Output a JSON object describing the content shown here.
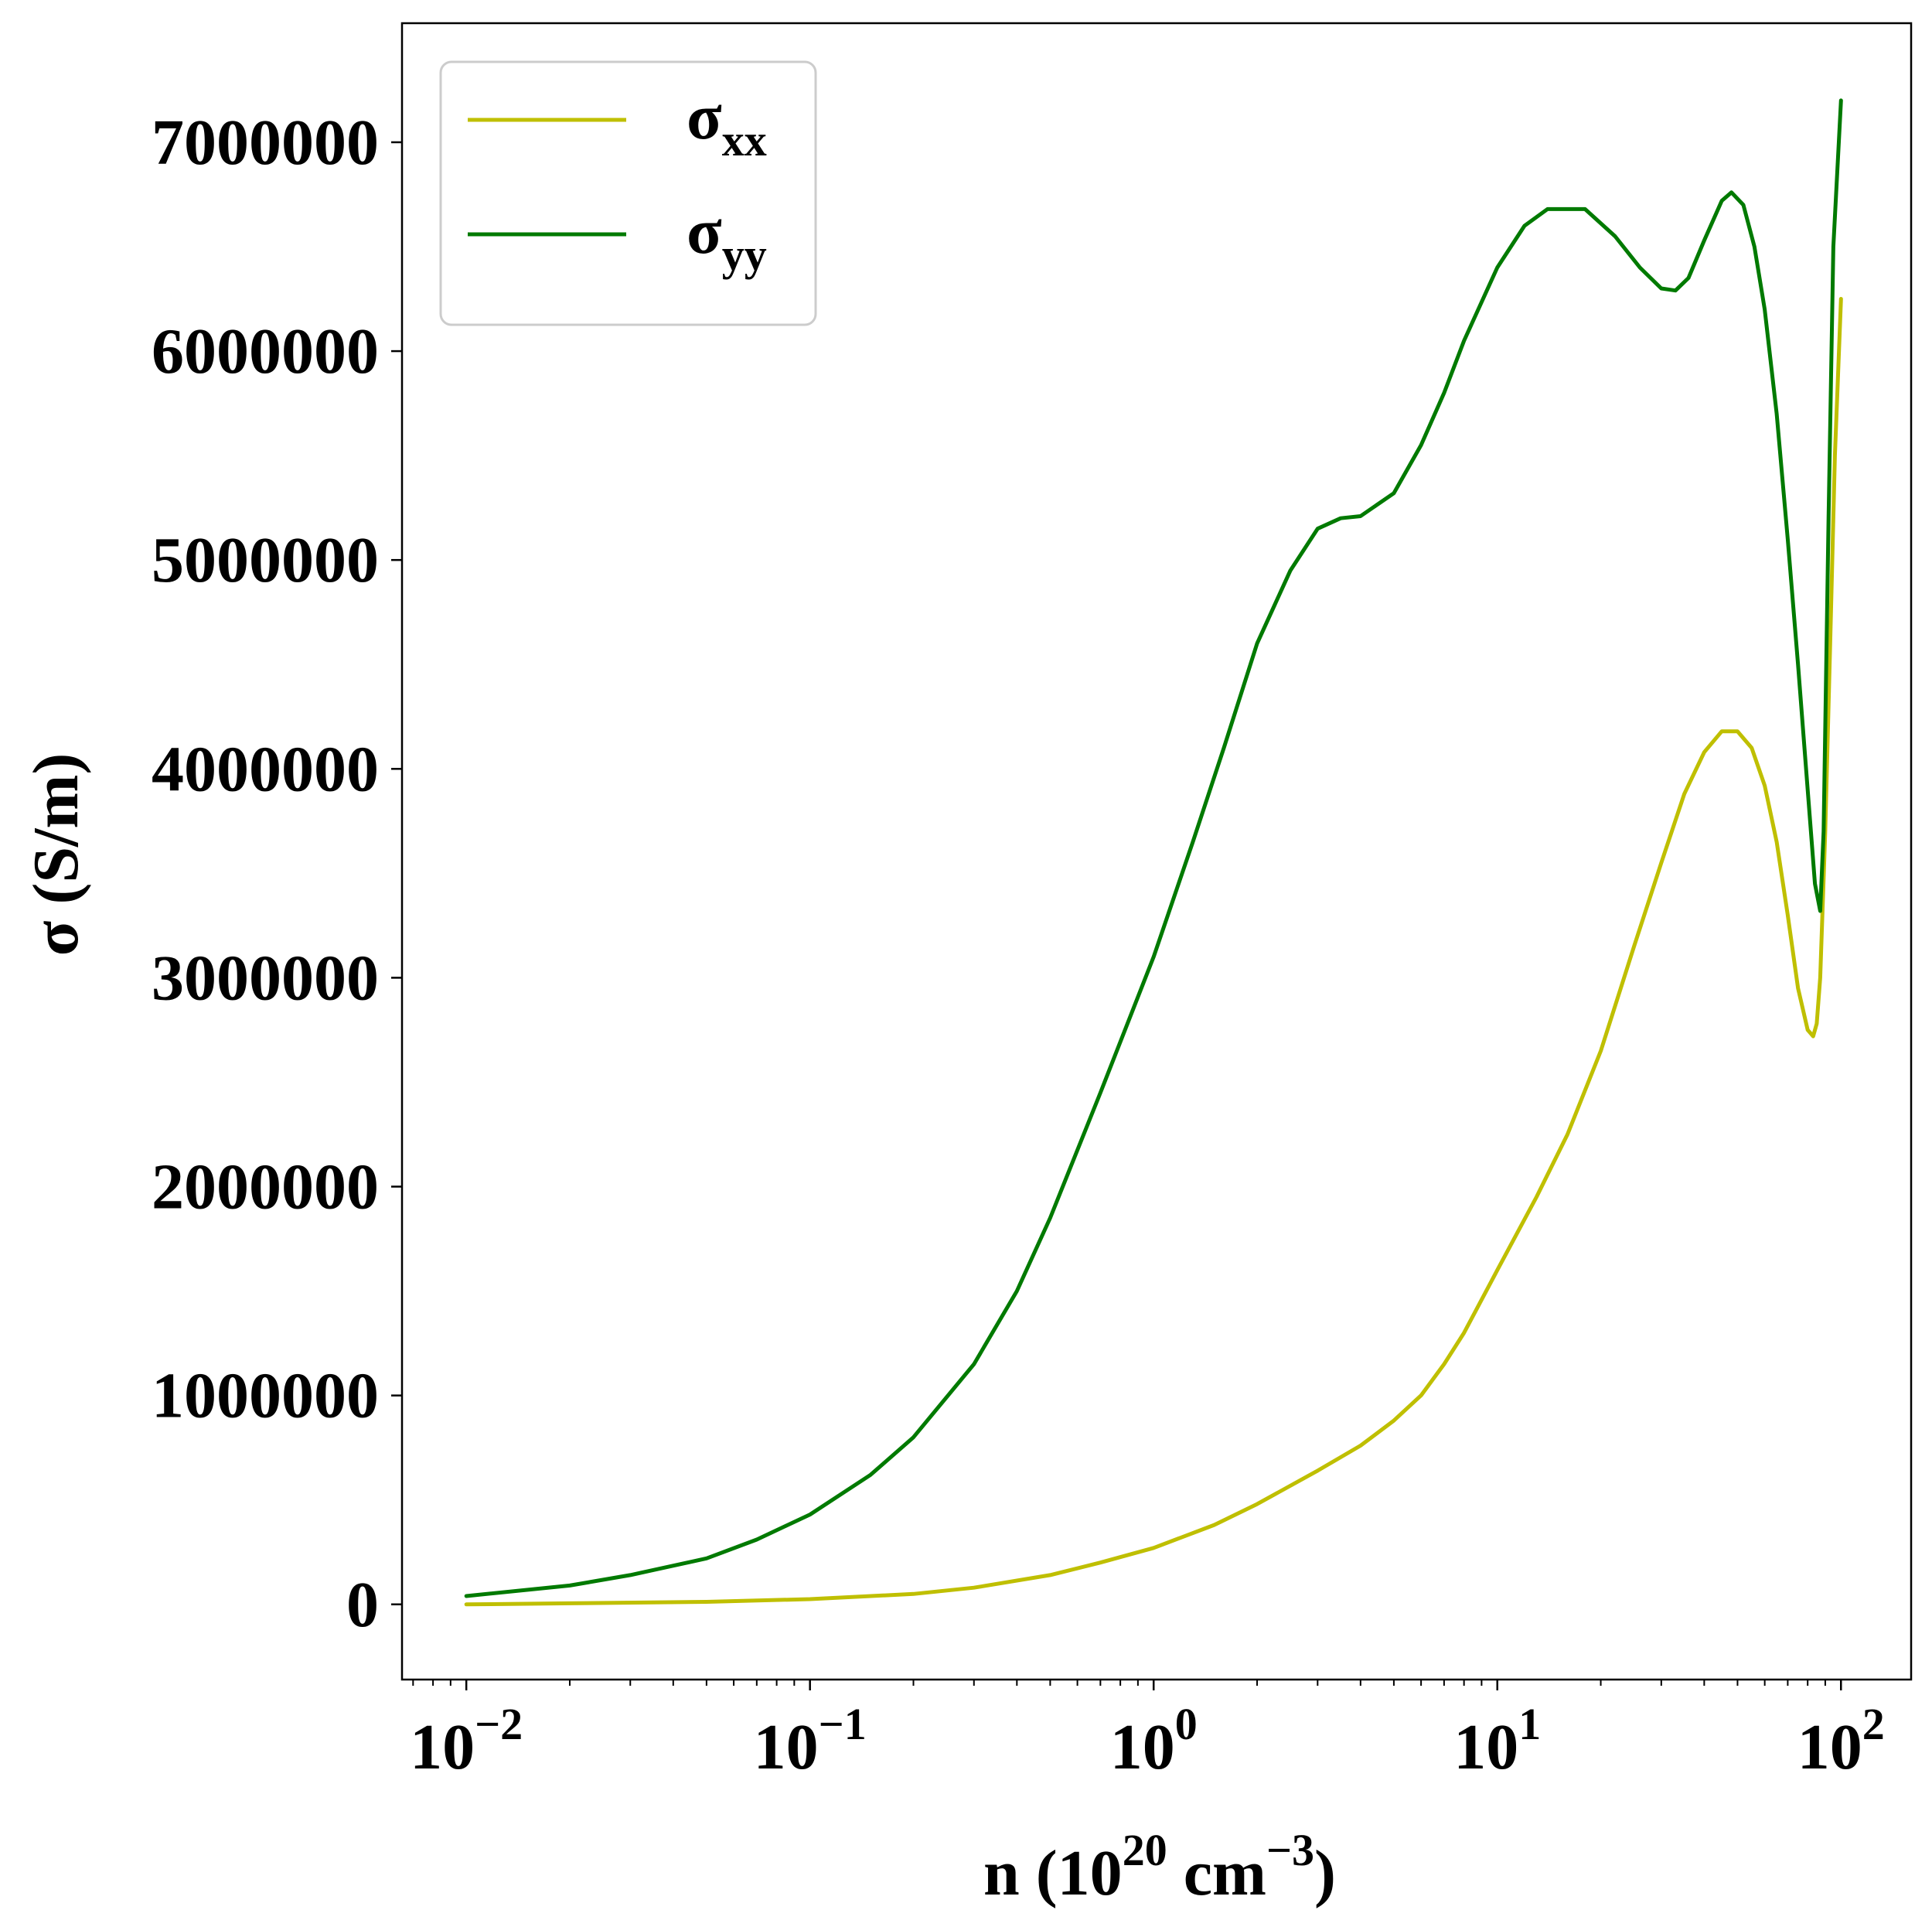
{
  "chart_data": {
    "type": "line",
    "xscale": "log",
    "xlim": [
      0.0065,
      160
    ],
    "ylim": [
      -360000,
      7570000
    ],
    "grid": false,
    "legend_position": "top-left",
    "xlabel": {
      "base": "n (10",
      "exp1": "20",
      "mid": " cm",
      "exp2": "−3",
      "end": ")"
    },
    "ylabel": "σ (S/m)",
    "x_ticks": [
      {
        "value": 0.01,
        "base": "10",
        "exp": "−2"
      },
      {
        "value": 0.1,
        "base": "10",
        "exp": "−1"
      },
      {
        "value": 1,
        "base": "10",
        "exp": "0"
      },
      {
        "value": 10,
        "base": "10",
        "exp": "1"
      },
      {
        "value": 100,
        "base": "10",
        "exp": "2"
      }
    ],
    "y_ticks": [
      {
        "value": 0,
        "label": "0"
      },
      {
        "value": 1000000,
        "label": "1000000"
      },
      {
        "value": 2000000,
        "label": "2000000"
      },
      {
        "value": 3000000,
        "label": "3000000"
      },
      {
        "value": 4000000,
        "label": "4000000"
      },
      {
        "value": 5000000,
        "label": "5000000"
      },
      {
        "value": 6000000,
        "label": "6000000"
      },
      {
        "value": 7000000,
        "label": "7000000"
      }
    ],
    "series": [
      {
        "name": "σ",
        "subscript": "xx",
        "color": "#bfbf00",
        "points": [
          [
            0.01,
            0
          ],
          [
            0.02,
            5000
          ],
          [
            0.05,
            12000
          ],
          [
            0.1,
            25000
          ],
          [
            0.2,
            50000
          ],
          [
            0.3,
            80000
          ],
          [
            0.5,
            140000
          ],
          [
            0.7,
            200000
          ],
          [
            1.0,
            270000
          ],
          [
            1.5,
            380000
          ],
          [
            2.0,
            480000
          ],
          [
            3.0,
            640000
          ],
          [
            4.0,
            760000
          ],
          [
            5.0,
            880000
          ],
          [
            6.0,
            1000000
          ],
          [
            7.0,
            1150000
          ],
          [
            8.0,
            1300000
          ],
          [
            10.0,
            1600000
          ],
          [
            13.0,
            1950000
          ],
          [
            16.0,
            2250000
          ],
          [
            20.0,
            2650000
          ],
          [
            25.0,
            3150000
          ],
          [
            30.0,
            3550000
          ],
          [
            35.0,
            3880000
          ],
          [
            40.0,
            4080000
          ],
          [
            45.0,
            4180000
          ],
          [
            50.0,
            4180000
          ],
          [
            55.0,
            4100000
          ],
          [
            60.0,
            3920000
          ],
          [
            65.0,
            3650000
          ],
          [
            70.0,
            3300000
          ],
          [
            75.0,
            2950000
          ],
          [
            80.0,
            2750000
          ],
          [
            83.0,
            2720000
          ],
          [
            85.0,
            2780000
          ],
          [
            87.0,
            3000000
          ],
          [
            90.0,
            3700000
          ],
          [
            93.0,
            4600000
          ],
          [
            96.0,
            5500000
          ],
          [
            100.0,
            6250000
          ]
        ]
      },
      {
        "name": "σ",
        "subscript": "yy",
        "color": "#007a00",
        "points": [
          [
            0.01,
            40000
          ],
          [
            0.02,
            90000
          ],
          [
            0.03,
            140000
          ],
          [
            0.05,
            220000
          ],
          [
            0.07,
            310000
          ],
          [
            0.1,
            430000
          ],
          [
            0.15,
            620000
          ],
          [
            0.2,
            800000
          ],
          [
            0.3,
            1150000
          ],
          [
            0.4,
            1500000
          ],
          [
            0.5,
            1850000
          ],
          [
            0.7,
            2450000
          ],
          [
            1.0,
            3100000
          ],
          [
            1.3,
            3650000
          ],
          [
            1.6,
            4100000
          ],
          [
            2.0,
            4600000
          ],
          [
            2.5,
            4950000
          ],
          [
            3.0,
            5150000
          ],
          [
            3.5,
            5200000
          ],
          [
            4.0,
            5210000
          ],
          [
            5.0,
            5320000
          ],
          [
            6.0,
            5550000
          ],
          [
            7.0,
            5800000
          ],
          [
            8.0,
            6050000
          ],
          [
            10.0,
            6400000
          ],
          [
            12.0,
            6600000
          ],
          [
            14.0,
            6680000
          ],
          [
            18.0,
            6680000
          ],
          [
            22.0,
            6550000
          ],
          [
            26.0,
            6400000
          ],
          [
            30.0,
            6300000
          ],
          [
            33.0,
            6290000
          ],
          [
            36.0,
            6350000
          ],
          [
            40.0,
            6530000
          ],
          [
            45.0,
            6720000
          ],
          [
            48.0,
            6760000
          ],
          [
            52.0,
            6700000
          ],
          [
            56.0,
            6500000
          ],
          [
            60.0,
            6200000
          ],
          [
            65.0,
            5700000
          ],
          [
            70.0,
            5100000
          ],
          [
            75.0,
            4500000
          ],
          [
            80.0,
            3900000
          ],
          [
            84.0,
            3450000
          ],
          [
            87.0,
            3320000
          ],
          [
            89.0,
            3700000
          ],
          [
            92.0,
            5200000
          ],
          [
            95.0,
            6500000
          ],
          [
            100.0,
            7200000
          ]
        ]
      }
    ]
  }
}
